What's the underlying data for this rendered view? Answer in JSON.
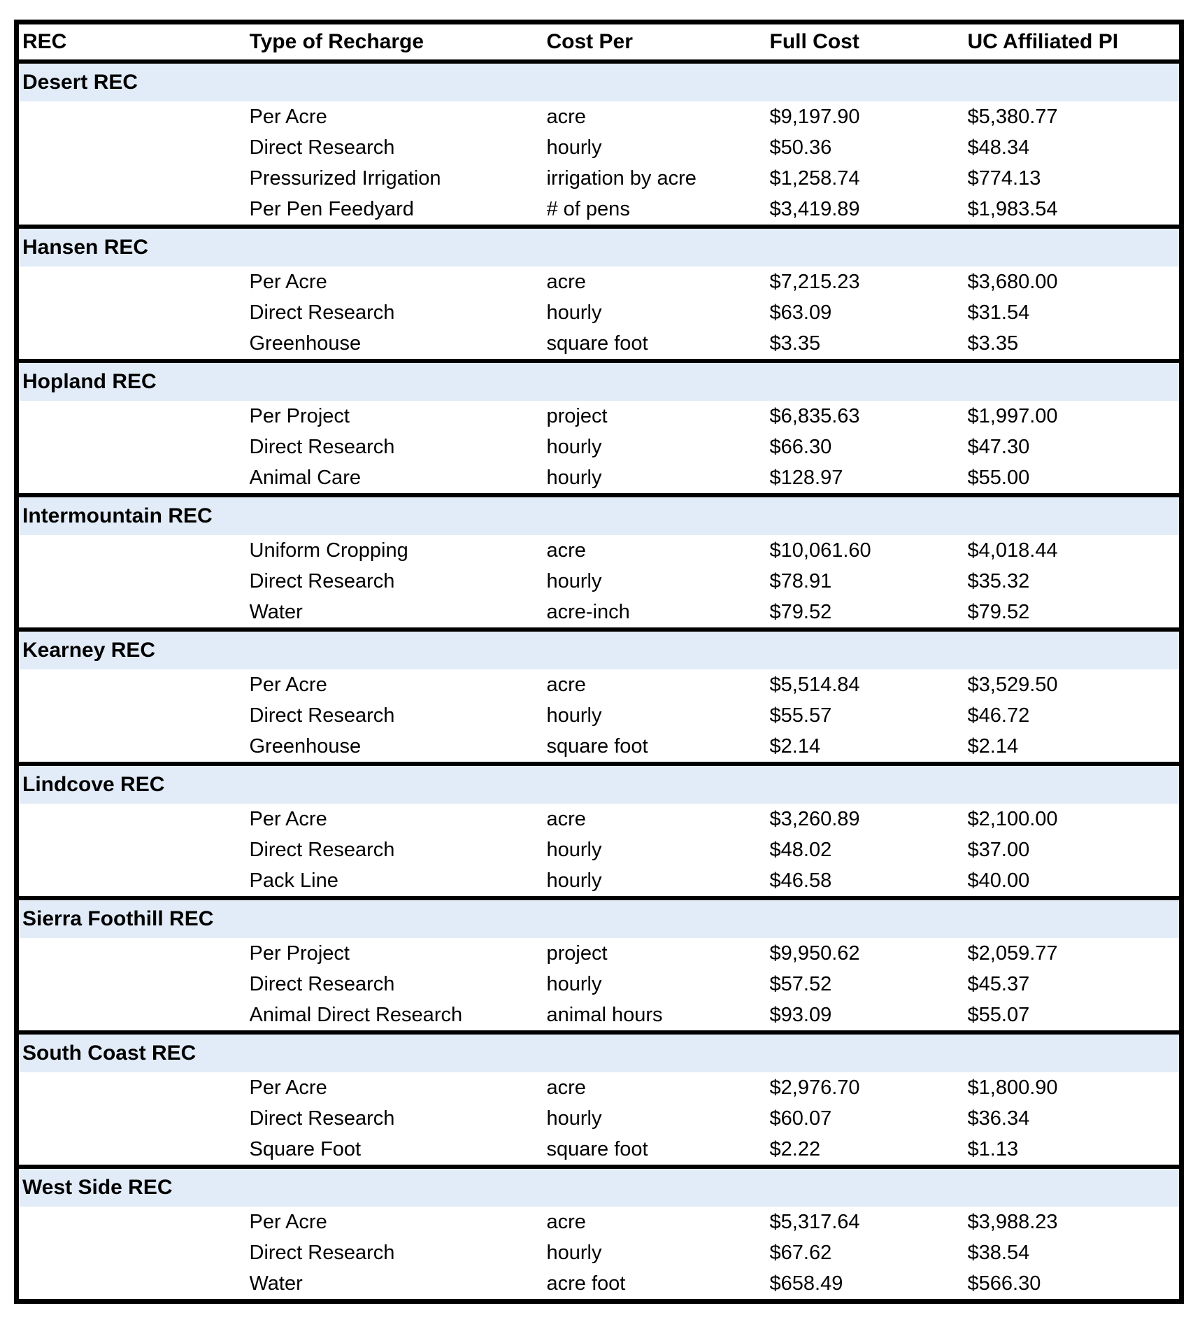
{
  "colors": {
    "section_header_bg": "#E2ECF8",
    "border": "#000000",
    "text": "#000000",
    "page_background": "#FFFFFF"
  },
  "table": {
    "columns": [
      "REC",
      "Type of Recharge",
      "Cost Per",
      "Full Cost",
      "UC Affiliated PI"
    ],
    "sections": [
      {
        "name": "Desert REC",
        "rows": [
          {
            "type": "Per Acre",
            "cost_per": "acre",
            "full_cost": "$9,197.90",
            "uc_pi": "$5,380.77"
          },
          {
            "type": "Direct Research",
            "cost_per": "hourly",
            "full_cost": "$50.36",
            "uc_pi": "$48.34"
          },
          {
            "type": "Pressurized Irrigation",
            "cost_per": "irrigation by acre",
            "full_cost": "$1,258.74",
            "uc_pi": "$774.13"
          },
          {
            "type": "Per Pen Feedyard",
            "cost_per": "# of pens",
            "full_cost": "$3,419.89",
            "uc_pi": "$1,983.54"
          }
        ]
      },
      {
        "name": "Hansen REC",
        "rows": [
          {
            "type": "Per Acre",
            "cost_per": "acre",
            "full_cost": "$7,215.23",
            "uc_pi": "$3,680.00"
          },
          {
            "type": "Direct Research",
            "cost_per": "hourly",
            "full_cost": "$63.09",
            "uc_pi": "$31.54"
          },
          {
            "type": "Greenhouse",
            "cost_per": "square foot",
            "full_cost": "$3.35",
            "uc_pi": "$3.35"
          }
        ]
      },
      {
        "name": "Hopland REC",
        "rows": [
          {
            "type": "Per Project",
            "cost_per": "project",
            "full_cost": "$6,835.63",
            "uc_pi": "$1,997.00"
          },
          {
            "type": "Direct Research",
            "cost_per": "hourly",
            "full_cost": "$66.30",
            "uc_pi": "$47.30"
          },
          {
            "type": "Animal Care",
            "cost_per": "hourly",
            "full_cost": "$128.97",
            "uc_pi": "$55.00"
          }
        ]
      },
      {
        "name": "Intermountain REC",
        "rows": [
          {
            "type": "Uniform Cropping",
            "cost_per": "acre",
            "full_cost": "$10,061.60",
            "uc_pi": "$4,018.44"
          },
          {
            "type": "Direct Research",
            "cost_per": "hourly",
            "full_cost": "$78.91",
            "uc_pi": "$35.32"
          },
          {
            "type": "Water",
            "cost_per": "acre-inch",
            "full_cost": "$79.52",
            "uc_pi": "$79.52"
          }
        ]
      },
      {
        "name": "Kearney REC",
        "rows": [
          {
            "type": "Per Acre",
            "cost_per": "acre",
            "full_cost": "$5,514.84",
            "uc_pi": "$3,529.50"
          },
          {
            "type": "Direct Research",
            "cost_per": "hourly",
            "full_cost": "$55.57",
            "uc_pi": "$46.72"
          },
          {
            "type": "Greenhouse",
            "cost_per": "square foot",
            "full_cost": "$2.14",
            "uc_pi": "$2.14"
          }
        ]
      },
      {
        "name": "Lindcove REC",
        "rows": [
          {
            "type": "Per Acre",
            "cost_per": "acre",
            "full_cost": "$3,260.89",
            "uc_pi": "$2,100.00"
          },
          {
            "type": "Direct Research",
            "cost_per": "hourly",
            "full_cost": "$48.02",
            "uc_pi": "$37.00"
          },
          {
            "type": "Pack Line",
            "cost_per": "hourly",
            "full_cost": "$46.58",
            "uc_pi": "$40.00"
          }
        ]
      },
      {
        "name": "Sierra Foothill REC",
        "rows": [
          {
            "type": "Per Project",
            "cost_per": "project",
            "full_cost": "$9,950.62",
            "uc_pi": "$2,059.77"
          },
          {
            "type": "Direct Research",
            "cost_per": "hourly",
            "full_cost": "$57.52",
            "uc_pi": "$45.37"
          },
          {
            "type": "Animal Direct Research",
            "cost_per": "animal hours",
            "full_cost": "$93.09",
            "uc_pi": "$55.07"
          }
        ]
      },
      {
        "name": "South Coast REC",
        "rows": [
          {
            "type": "Per Acre",
            "cost_per": "acre",
            "full_cost": "$2,976.70",
            "uc_pi": "$1,800.90"
          },
          {
            "type": "Direct Research",
            "cost_per": "hourly",
            "full_cost": "$60.07",
            "uc_pi": "$36.34"
          },
          {
            "type": "Square Foot",
            "cost_per": "square foot",
            "full_cost": "$2.22",
            "uc_pi": "$1.13"
          }
        ]
      },
      {
        "name": "West Side REC",
        "rows": [
          {
            "type": "Per Acre",
            "cost_per": "acre",
            "full_cost": "$5,317.64",
            "uc_pi": "$3,988.23"
          },
          {
            "type": "Direct Research",
            "cost_per": "hourly",
            "full_cost": "$67.62",
            "uc_pi": "$38.54"
          },
          {
            "type": "Water",
            "cost_per": "acre foot",
            "full_cost": "$658.49",
            "uc_pi": "$566.30"
          }
        ]
      }
    ]
  }
}
